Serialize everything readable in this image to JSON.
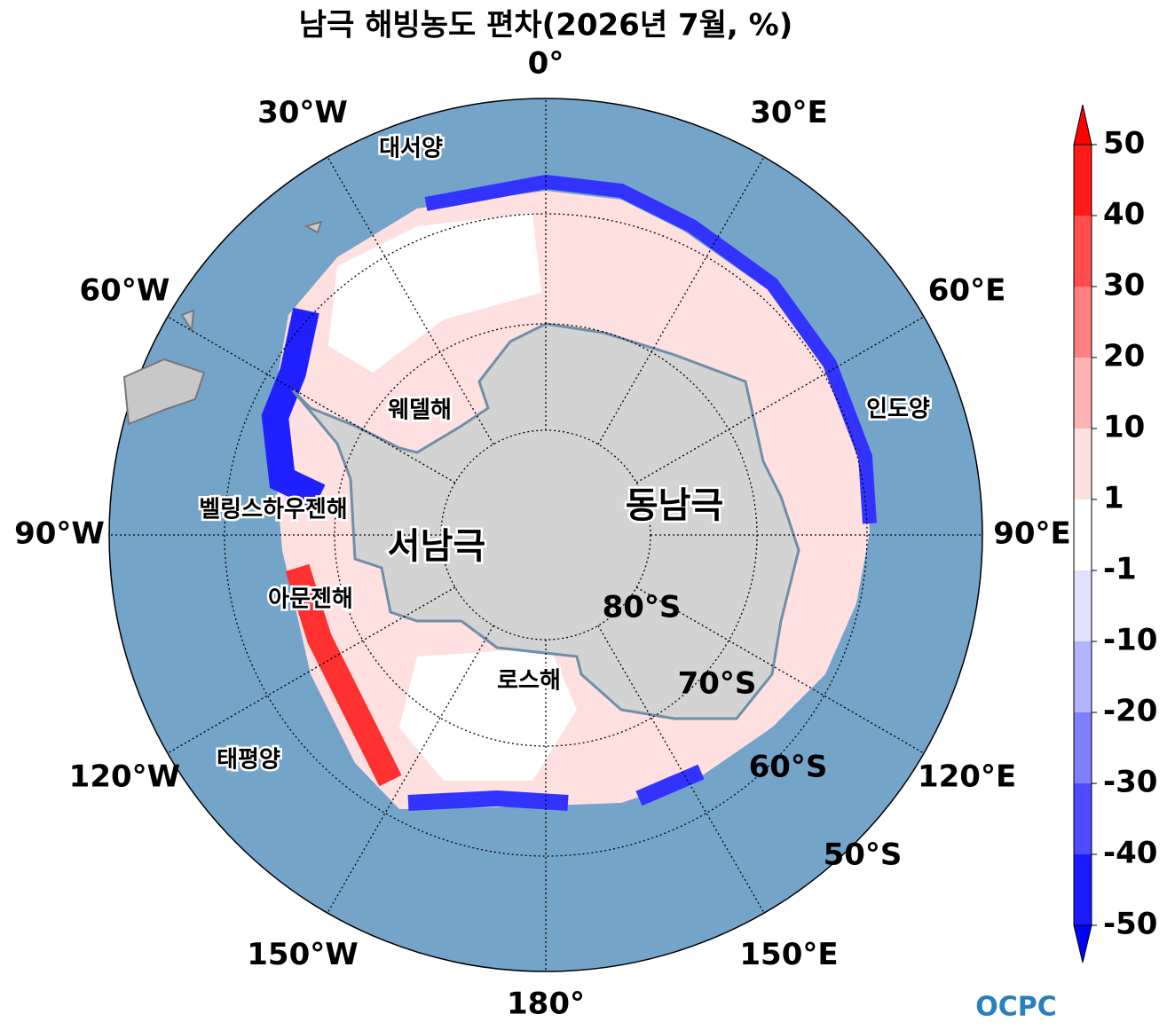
{
  "title": "남극 해빙농도 편차(2026년 7월, %)",
  "longitude_labels": [
    "0°",
    "30°E",
    "60°E",
    "90°E",
    "120°E",
    "150°E",
    "180°",
    "150°W",
    "120°W",
    "90°W",
    "60°W",
    "30°W"
  ],
  "latitude_labels": [
    "80°S",
    "70°S",
    "60°S",
    "50°S"
  ],
  "region_labels": [
    "대서양",
    "웨델해",
    "인도양",
    "벨링스하우젠해",
    "아문젠해",
    "태평양",
    "로스해",
    "서남극",
    "동남극"
  ],
  "colorbar": {
    "ticks": [
      50,
      40,
      30,
      20,
      10,
      1,
      -1,
      -10,
      -20,
      -30,
      -40,
      -50
    ],
    "colors": [
      "#ff1a1a",
      "#ff4d4d",
      "#ff8080",
      "#ffb3b3",
      "#ffe0e0",
      "#ffffff",
      "#e0e0ff",
      "#b3b3ff",
      "#8080ff",
      "#4d4dff",
      "#1a1aff"
    ],
    "extend_colors": [
      "#ff0000",
      "#0000ff"
    ]
  },
  "logo": "OCPC"
}
